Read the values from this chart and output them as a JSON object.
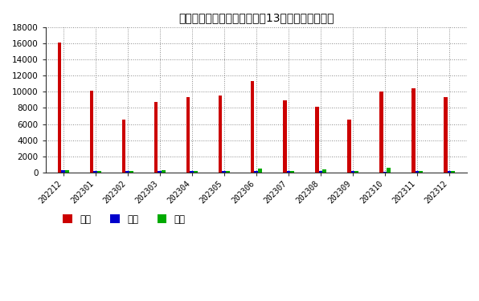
{
  "title": "日本自前三大进口来源国过去13个月刚玉进口数量",
  "categories": [
    "202212",
    "202301",
    "202302",
    "202303",
    "202304",
    "202305",
    "202306",
    "202307",
    "202308",
    "202309",
    "202310",
    "202311",
    "202312"
  ],
  "china": [
    16100,
    10100,
    6550,
    8750,
    9350,
    9500,
    11300,
    8900,
    8100,
    6600,
    10050,
    10450,
    9300
  ],
  "korea": [
    220,
    130,
    120,
    200,
    170,
    170,
    200,
    170,
    120,
    150,
    100,
    170,
    180
  ],
  "bahrain": [
    230,
    210,
    200,
    240,
    140,
    180,
    430,
    190,
    370,
    210,
    530,
    170,
    120
  ],
  "china_color": "#cc0000",
  "korea_color": "#0000cc",
  "bahrain_color": "#00aa00",
  "china_label": "中国",
  "korea_label": "韩国",
  "bahrain_label": "巴林",
  "ylim": [
    0,
    18000
  ],
  "yticks": [
    0,
    2000,
    4000,
    6000,
    8000,
    10000,
    12000,
    14000,
    16000,
    18000
  ],
  "bg_color": "#ffffff",
  "grid_color": "#888888"
}
